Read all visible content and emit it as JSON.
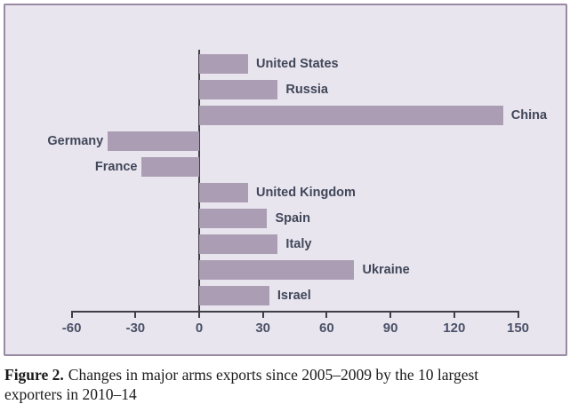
{
  "chart_data": {
    "type": "bar",
    "orientation": "horizontal",
    "title": "",
    "xlabel": "",
    "ylabel": "",
    "unit": "percent change",
    "categories": [
      "United States",
      "Russia",
      "China",
      "Germany",
      "France",
      "United Kingdom",
      "Spain",
      "Italy",
      "Ukraine",
      "Israel"
    ],
    "values": [
      23,
      37,
      143,
      -43,
      -27,
      23,
      32,
      37,
      73,
      33
    ],
    "xlim": [
      -60,
      150
    ],
    "xticks": [
      -60,
      -30,
      0,
      30,
      60,
      90,
      120,
      150
    ],
    "xtick_labels": [
      "-60",
      "-30",
      "0",
      "30",
      "60",
      "90",
      "120",
      "150"
    ],
    "grid": false,
    "legend": false,
    "label_position": "end-of-bar",
    "colors": {
      "bar": "#ab9eb4",
      "panel_background": "#e9e5ee",
      "panel_border": "#998aa4",
      "axis": "#3e3e45",
      "tick_text": "#4a5168",
      "bar_label_text": "#40475a",
      "caption_text": "#1b1b1d"
    }
  },
  "caption": {
    "label": "Figure 2.",
    "line1_rest": "Changes in major arms exports since 2005–2009 by the 10 largest",
    "line2": "exporters in 2010–14"
  }
}
